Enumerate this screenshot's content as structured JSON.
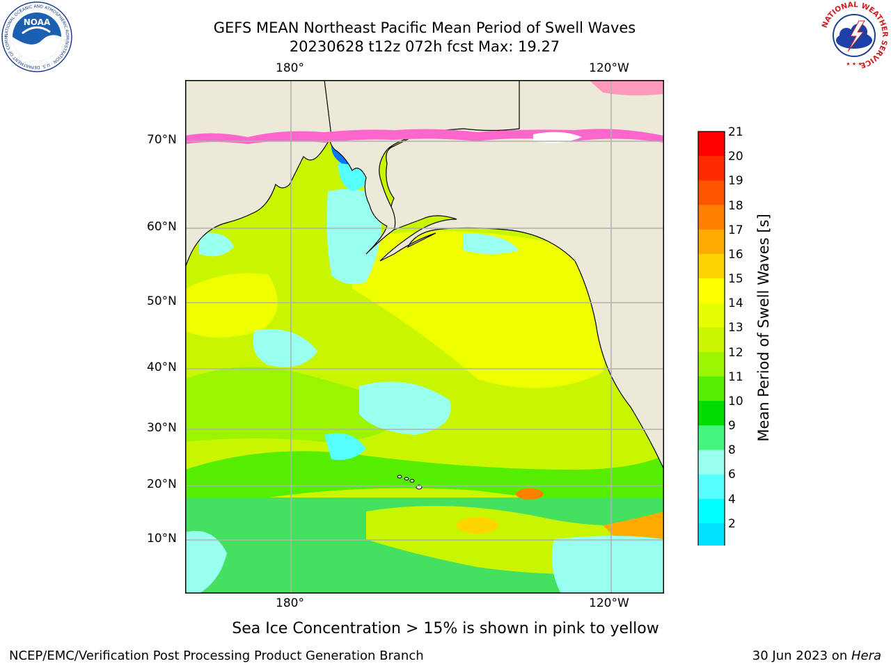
{
  "header": {
    "title_line1": "GEFS MEAN Northeast Pacific Mean Period of Swell Waves",
    "title_line2": "20230628 t12z 072h fcst   Max: 19.27"
  },
  "logos": {
    "noaa_text": "NOAA",
    "noaa_ring_text": "NATIONAL OCEANIC AND ATMOSPHERIC ADMINISTRATION · U.S. DEPARTMENT OF COMMERCE",
    "nws_ring_text": "NATIONAL WEATHER SERVICE"
  },
  "map": {
    "top_ticks": [
      "180°",
      "120°W"
    ],
    "bottom_ticks": [
      "180°",
      "120°W"
    ],
    "lat_ticks": [
      "70°N",
      "60°N",
      "50°N",
      "40°N",
      "30°N",
      "20°N",
      "10°N"
    ],
    "colors": {
      "land": "#ece9d8",
      "ocean_base": "#c8f500",
      "grid": "#b0b0b0"
    }
  },
  "colorbar": {
    "label": "Mean Period of Swell Waves [s]",
    "ticks": [
      "21",
      "20",
      "19",
      "18",
      "17",
      "16",
      "15",
      "14",
      "13",
      "12",
      "11",
      "10",
      "9",
      "8",
      "6",
      "4",
      "2"
    ],
    "colors_top_to_bottom": [
      "#ff0000",
      "#ff2a00",
      "#ff5500",
      "#ff8000",
      "#ffaa00",
      "#ffd500",
      "#ffff00",
      "#e5ff00",
      "#c8f500",
      "#9bf500",
      "#55ee00",
      "#00dd00",
      "#44f580",
      "#99ffee",
      "#55ffff",
      "#00ffff",
      "#00e0ff",
      "#0077ff"
    ],
    "extend_color": "#0000ff"
  },
  "note": "Sea Ice Concentration > 15% is shown in pink to yellow",
  "footer": {
    "left": "NCEP/EMC/Verification Post Processing Product Generation Branch",
    "right_prefix": "30 Jun 2023 on ",
    "right_host": "Hera"
  }
}
